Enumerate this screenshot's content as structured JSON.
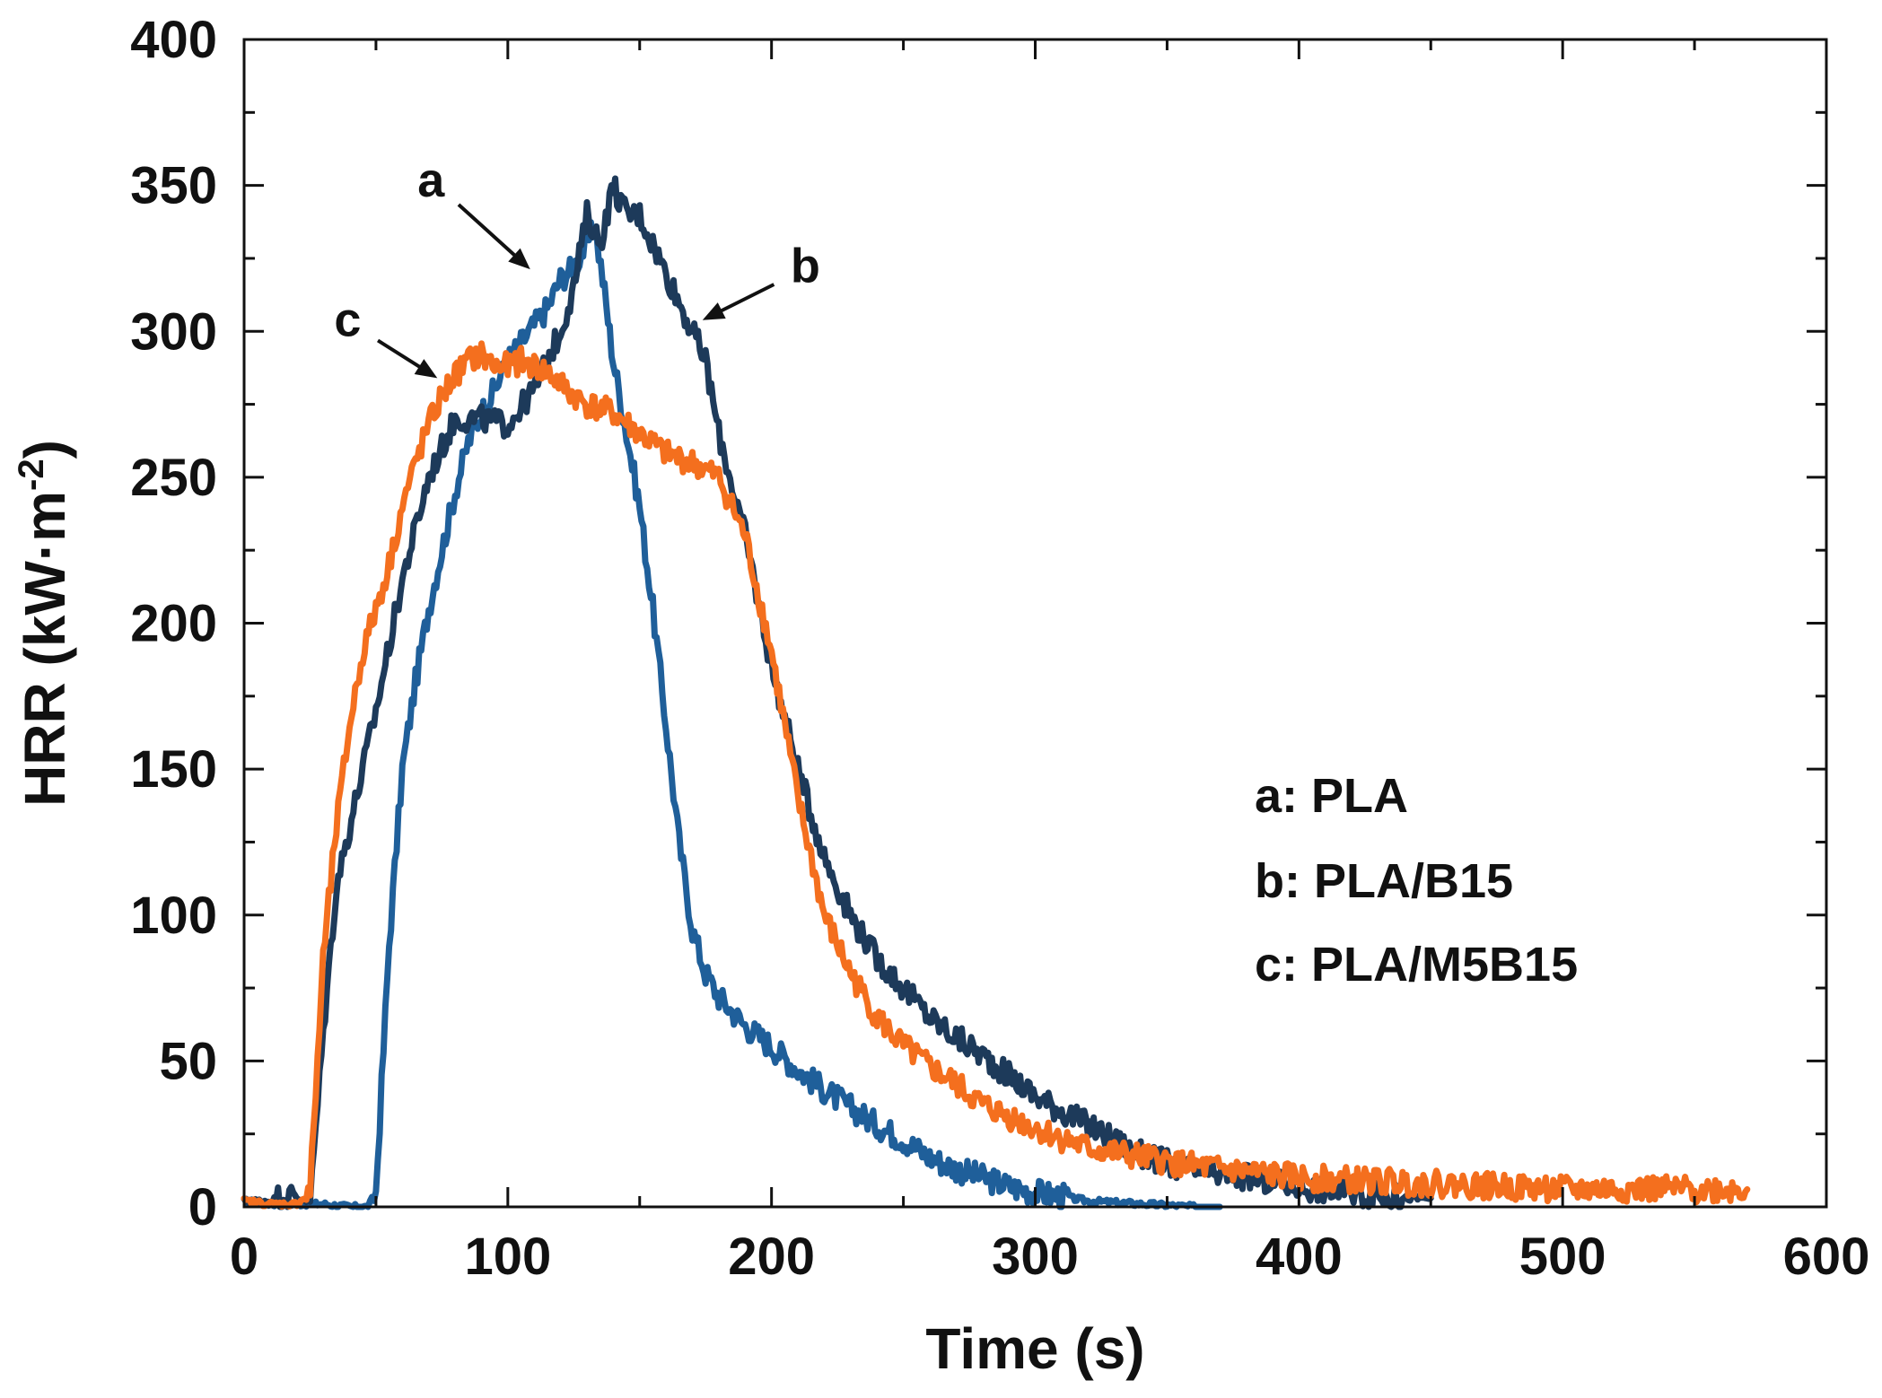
{
  "chart_data": {
    "type": "line",
    "title": "",
    "xlabel": "Time (s)",
    "ylabel": "HRR (kW·m-2)",
    "ylabel_parts": {
      "main": "HRR (kW·m",
      "sup": "-2",
      "close": ")"
    },
    "xlim": [
      0,
      600
    ],
    "ylim": [
      0,
      400
    ],
    "xticks": [
      0,
      100,
      200,
      300,
      400,
      500,
      600
    ],
    "yticks": [
      0,
      50,
      100,
      150,
      200,
      250,
      300,
      350,
      400
    ],
    "grid": false,
    "legend_position": "right",
    "legend": [
      "a: PLA",
      "b: PLA/B15",
      "c: PLA/M5B15"
    ],
    "annotations": [
      {
        "label": "a",
        "series": "a: PLA",
        "x": 110,
        "y": 320
      },
      {
        "label": "b",
        "series": "b: PLA/B15",
        "x": 172,
        "y": 303
      },
      {
        "label": "c",
        "series": "c: PLA/M5B15",
        "x": 75,
        "y": 283
      }
    ],
    "series": [
      {
        "name": "a: PLA",
        "color": "#1f5f9a",
        "x": [
          0,
          10,
          20,
          30,
          40,
          47,
          50,
          55,
          60,
          65,
          70,
          75,
          80,
          85,
          90,
          95,
          100,
          105,
          110,
          115,
          120,
          125,
          130,
          133,
          136,
          140,
          145,
          150,
          155,
          160,
          165,
          170,
          175,
          180,
          190,
          200,
          210,
          220,
          230,
          240,
          250,
          260,
          270,
          280,
          290,
          300,
          320,
          340,
          360,
          370
        ],
        "values": [
          2,
          1,
          1,
          1,
          0,
          0,
          5,
          90,
          150,
          180,
          205,
          225,
          245,
          262,
          272,
          280,
          290,
          296,
          302,
          308,
          318,
          322,
          330,
          336,
          318,
          290,
          265,
          240,
          205,
          165,
          125,
          95,
          80,
          72,
          62,
          55,
          47,
          40,
          34,
          28,
          23,
          17,
          13,
          10,
          7,
          5,
          2,
          1,
          0,
          0
        ]
      },
      {
        "name": "b: PLA/B15",
        "color": "#1d3a5a",
        "x": [
          0,
          10,
          15,
          20,
          25,
          30,
          35,
          40,
          50,
          60,
          70,
          80,
          90,
          100,
          110,
          120,
          125,
          130,
          135,
          140,
          145,
          150,
          155,
          160,
          165,
          170,
          175,
          180,
          190,
          200,
          210,
          220,
          230,
          240,
          250,
          260,
          270,
          280,
          290,
          300,
          320,
          340,
          360,
          380,
          400,
          420,
          440,
          450
        ],
        "values": [
          2,
          2,
          4,
          3,
          2,
          60,
          110,
          130,
          170,
          215,
          250,
          270,
          270,
          268,
          280,
          300,
          315,
          340,
          330,
          350,
          340,
          340,
          330,
          320,
          310,
          300,
          290,
          265,
          230,
          185,
          150,
          120,
          100,
          85,
          75,
          65,
          58,
          52,
          45,
          38,
          28,
          18,
          12,
          10,
          7,
          5,
          3,
          3
        ]
      },
      {
        "name": "c: PLA/M5B15",
        "color": "#f46f1e",
        "x": [
          0,
          10,
          20,
          25,
          30,
          35,
          40,
          45,
          50,
          55,
          60,
          65,
          70,
          75,
          80,
          85,
          90,
          95,
          100,
          105,
          110,
          115,
          120,
          125,
          130,
          140,
          150,
          160,
          170,
          180,
          190,
          200,
          210,
          220,
          230,
          240,
          250,
          260,
          270,
          280,
          300,
          320,
          340,
          360,
          380,
          400,
          450,
          500,
          550,
          570
        ],
        "values": [
          2,
          1,
          1,
          5,
          85,
          130,
          165,
          190,
          205,
          220,
          240,
          255,
          268,
          278,
          285,
          290,
          292,
          288,
          288,
          290,
          288,
          286,
          282,
          278,
          275,
          272,
          265,
          258,
          255,
          250,
          230,
          190,
          140,
          100,
          80,
          65,
          55,
          48,
          42,
          35,
          27,
          20,
          17,
          14,
          12,
          10,
          8,
          6,
          6,
          6
        ]
      }
    ]
  }
}
